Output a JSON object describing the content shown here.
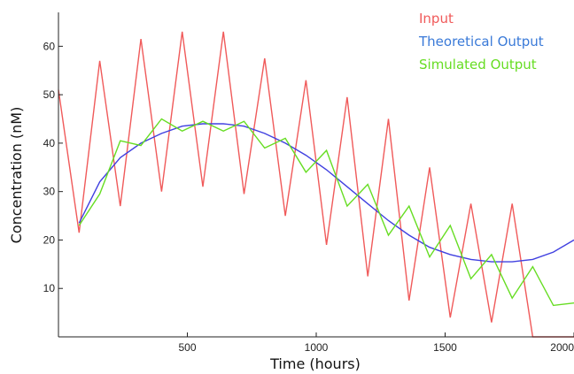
{
  "chart_data": {
    "type": "line",
    "title": "",
    "xlabel": "Time (hours)",
    "ylabel": "Concentration (nM)",
    "xlim": [
      0,
      2000
    ],
    "ylim": [
      0,
      67
    ],
    "xticks": [
      500,
      1000,
      1500,
      2000
    ],
    "yticks": [
      10,
      20,
      30,
      40,
      50,
      60
    ],
    "grid": false,
    "legend_position": "top-right",
    "series": [
      {
        "name": "Input",
        "color": "#f05a5a",
        "x": [
          0,
          80,
          160,
          240,
          320,
          400,
          480,
          560,
          640,
          720,
          800,
          880,
          960,
          1040,
          1120,
          1200,
          1280,
          1360,
          1440,
          1520,
          1600,
          1680,
          1760,
          1840,
          1920,
          2000
        ],
        "y": [
          51,
          21.5,
          57,
          27,
          61.5,
          30,
          63,
          31,
          63,
          29.5,
          57.5,
          25,
          53,
          19,
          49.5,
          12.5,
          45,
          7.5,
          35,
          4,
          27.5,
          3,
          27.5,
          0,
          0,
          0
        ]
      },
      {
        "name": "Theoretical Output",
        "color": "#4040e0",
        "x": [
          80,
          160,
          240,
          320,
          400,
          480,
          560,
          640,
          720,
          800,
          880,
          960,
          1040,
          1120,
          1200,
          1280,
          1360,
          1440,
          1520,
          1600,
          1680,
          1760,
          1840,
          1920,
          2000
        ],
        "y": [
          23.5,
          32,
          37,
          40,
          42,
          43.5,
          44,
          44,
          43.5,
          42,
          40,
          37.5,
          34.5,
          31,
          27.5,
          24,
          21,
          18.5,
          17,
          16,
          15.5,
          15.5,
          16,
          17.5,
          20
        ]
      },
      {
        "name": "Simulated Output",
        "color": "#66dd22",
        "x": [
          80,
          160,
          240,
          320,
          400,
          480,
          560,
          640,
          720,
          800,
          880,
          960,
          1040,
          1120,
          1200,
          1280,
          1360,
          1440,
          1520,
          1600,
          1680,
          1760,
          1840,
          1920,
          2000
        ],
        "y": [
          23,
          29.5,
          40.5,
          39.5,
          45,
          42.5,
          44.5,
          42.5,
          44.5,
          39,
          41,
          34,
          38.5,
          27,
          31.5,
          21,
          27,
          16.5,
          23,
          12,
          17,
          8,
          14.5,
          6.5,
          7
        ]
      }
    ]
  }
}
